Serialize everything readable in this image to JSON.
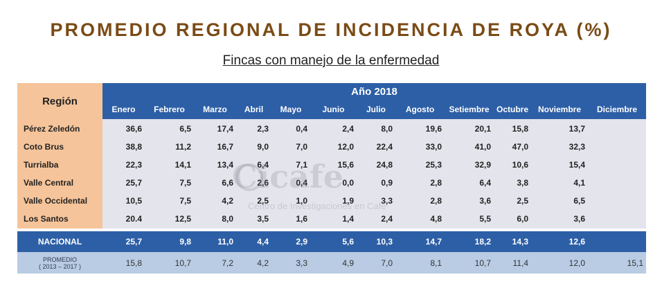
{
  "title": "PROMEDIO REGIONAL DE INCIDENCIA DE ROYA (%)",
  "subtitle": "Fincas con manejo de la enfermedad",
  "watermark": {
    "text": "Cicafe",
    "subtitle": "Centro de Investigaciones en Café"
  },
  "table": {
    "region_header": "Región",
    "year_header": "Año 2018",
    "months": [
      "Enero",
      "Febrero",
      "Marzo",
      "Abril",
      "Mayo",
      "Junio",
      "Julio",
      "Agosto",
      "Setiembre",
      "Octubre",
      "Noviembre",
      "Diciembre"
    ],
    "rows": [
      {
        "region": "Pérez Zeledón",
        "values": [
          "36,6",
          "6,5",
          "17,4",
          "2,3",
          "0,4",
          "2,4",
          "8,0",
          "19,6",
          "20,1",
          "15,8",
          "13,7",
          ""
        ]
      },
      {
        "region": "Coto Brus",
        "values": [
          "38,8",
          "11,2",
          "16,7",
          "9,0",
          "7,0",
          "12,0",
          "22,4",
          "33,0",
          "41,0",
          "47,0",
          "32,3",
          ""
        ]
      },
      {
        "region": "Turrialba",
        "values": [
          "22,3",
          "14,1",
          "13,4",
          "6,4",
          "7,1",
          "15,6",
          "24,8",
          "25,3",
          "32,9",
          "10,6",
          "15,4",
          ""
        ]
      },
      {
        "region": "Valle Central",
        "values": [
          "25,7",
          "7,5",
          "6,6",
          "2,6",
          "0,4",
          "0,0",
          "0,9",
          "2,8",
          "6,4",
          "3,8",
          "4,1",
          ""
        ]
      },
      {
        "region": "Valle Occidental",
        "values": [
          "10,5",
          "7,5",
          "4,2",
          "2,5",
          "1,0",
          "1,9",
          "3,3",
          "2,8",
          "3,6",
          "2,5",
          "6,5",
          ""
        ]
      },
      {
        "region": "Los Santos",
        "values": [
          "20.4",
          "12,5",
          "8,0",
          "3,5",
          "1,6",
          "1,4",
          "2,4",
          "4,8",
          "5,5",
          "6,0",
          "3,6",
          ""
        ]
      }
    ],
    "nacional": {
      "label": "NACIONAL",
      "values": [
        "25,7",
        "9,8",
        "11,0",
        "4,4",
        "2,9",
        "5,6",
        "10,3",
        "14,7",
        "18,2",
        "14,3",
        "12,6",
        ""
      ]
    },
    "promedio": {
      "label": "PROMEDIO",
      "sublabel": "( 2013 – 2017 )",
      "values": [
        "15,8",
        "10,7",
        "7,2",
        "4,2",
        "3,3",
        "4,9",
        "7,0",
        "8,1",
        "10,7",
        "11,4",
        "12,0",
        "15,1"
      ]
    }
  },
  "colors": {
    "header_blue": "#2d5fa6",
    "region_orange": "#f6c49a",
    "body_grey": "#e4e4ec",
    "promedio_blue": "#b9cce4",
    "title_brown": "#7a4b16"
  }
}
